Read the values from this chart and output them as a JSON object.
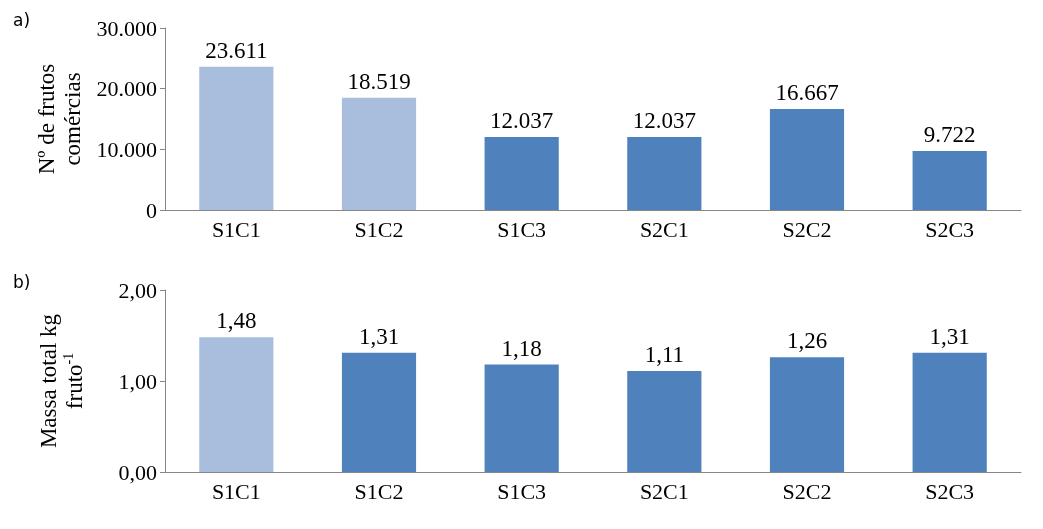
{
  "chart_data": [
    {
      "type": "bar",
      "title": "a)",
      "ylabel": "Nº de frutos comércias",
      "categories": [
        "S1C1",
        "S1C2",
        "S1C3",
        "S2C1",
        "S2C2",
        "S2C3"
      ],
      "values": [
        23611,
        18519,
        12037,
        12037,
        16667,
        9722
      ],
      "colors": [
        "#a9bedc",
        "#a9bedc",
        "#4f81bd",
        "#4f81bd",
        "#4f81bd",
        "#4f81bd"
      ],
      "value_labels": [
        "23.611",
        "18.519",
        "12.037",
        "12.037",
        "16.667",
        "9.722"
      ],
      "ylim": [
        0,
        30000
      ],
      "yticks": [
        {
          "value": 0,
          "label": "0"
        },
        {
          "value": 10000,
          "label": "10.000"
        },
        {
          "value": 20000,
          "label": "20.000"
        },
        {
          "value": 30000,
          "label": "30.000"
        }
      ],
      "grid": false
    },
    {
      "type": "bar",
      "title": "b)",
      "ylabel": "Massa total kg fruto$^{-1}$",
      "categories": [
        "S1C1",
        "S1C2",
        "S1C3",
        "S2C1",
        "S2C2",
        "S2C3"
      ],
      "values": [
        1.48,
        1.31,
        1.18,
        1.11,
        1.26,
        1.31
      ],
      "colors": [
        "#a9bedc",
        "#4f81bd",
        "#4f81bd",
        "#4f81bd",
        "#4f81bd",
        "#4f81bd"
      ],
      "value_labels": [
        "1,48",
        "1,31",
        "1,18",
        "1,11",
        "1,26",
        "1,31"
      ],
      "ylim": [
        0,
        2
      ],
      "yticks": [
        {
          "value": 0,
          "label": "0,00"
        },
        {
          "value": 1,
          "label": "1,00"
        },
        {
          "value": 2,
          "label": "2,00"
        }
      ],
      "grid": false
    }
  ]
}
